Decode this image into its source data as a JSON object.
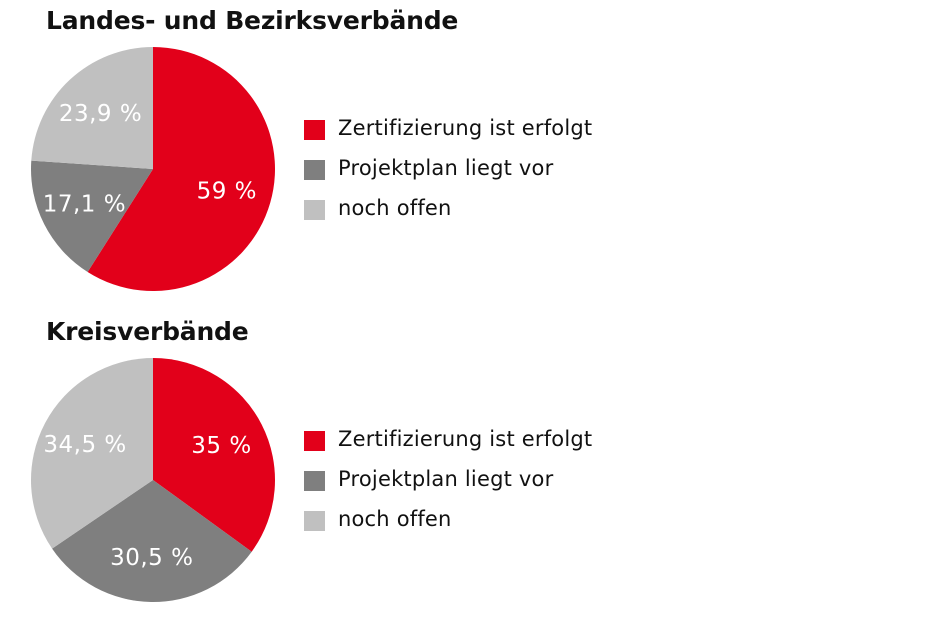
{
  "colors": {
    "zertifiziert": "#e2001a",
    "projektplan": "#7f7f7f",
    "offen": "#c0c0c0"
  },
  "chart_data": [
    {
      "type": "pie",
      "title": "Landes- und Bezirksverbände",
      "slices": [
        {
          "label": "Zertifizierung ist erfolgt",
          "value": 59,
          "display": "59 %",
          "color": "#e2001a"
        },
        {
          "label": "Projektplan liegt vor",
          "value": 17.1,
          "display": "17,1 %",
          "color": "#7f7f7f"
        },
        {
          "label": "noch offen",
          "value": 23.9,
          "display": "23,9 %",
          "color": "#c0c0c0"
        }
      ],
      "legend": [
        "Zertifizierung ist erfolgt",
        "Projektplan liegt vor",
        "noch offen"
      ],
      "legend_position": "right"
    },
    {
      "type": "pie",
      "title": "Kreisverbände",
      "slices": [
        {
          "label": "Zertifizierung ist erfolgt",
          "value": 35,
          "display": "35 %",
          "color": "#e2001a"
        },
        {
          "label": "Projektplan liegt vor",
          "value": 30.5,
          "display": "30,5 %",
          "color": "#7f7f7f"
        },
        {
          "label": "noch offen",
          "value": 34.5,
          "display": "34,5 %",
          "color": "#c0c0c0"
        }
      ],
      "legend": [
        "Zertifizierung ist erfolgt",
        "Projektplan liegt vor",
        "noch offen"
      ],
      "legend_position": "right"
    }
  ]
}
